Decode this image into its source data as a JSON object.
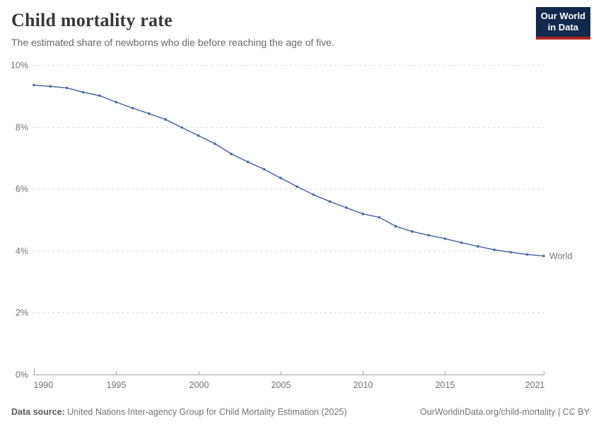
{
  "header": {
    "title": "Child mortality rate",
    "subtitle": "The estimated share of newborns who die before reaching the age of five.",
    "logo": {
      "line1": "Our World",
      "line2": "in Data",
      "bg_color": "#10294c",
      "accent_color": "#b3261e",
      "text_color": "#ffffff"
    }
  },
  "chart_data": {
    "type": "line",
    "title": "Child mortality rate",
    "xlabel": "",
    "ylabel": "",
    "ylim": [
      0,
      10
    ],
    "xlim": [
      1990,
      2021
    ],
    "yticks": [
      0,
      2,
      4,
      6,
      8,
      10
    ],
    "ytick_labels": [
      "0%",
      "2%",
      "4%",
      "6%",
      "8%",
      "10%"
    ],
    "xticks": [
      1990,
      1995,
      2000,
      2005,
      2010,
      2015,
      2021
    ],
    "grid": "horizontal-dashed",
    "legend_position": "end-of-line",
    "end_label": "World",
    "series": [
      {
        "name": "World",
        "color": "#4c6aa0",
        "x": [
          1990,
          1991,
          1992,
          1993,
          1994,
          1995,
          1996,
          1997,
          1998,
          1999,
          2000,
          2001,
          2002,
          2003,
          2004,
          2005,
          2006,
          2007,
          2008,
          2009,
          2010,
          2011,
          2012,
          2013,
          2014,
          2015,
          2016,
          2017,
          2018,
          2019,
          2020,
          2021
        ],
        "values": [
          9.35,
          9.31,
          9.26,
          9.12,
          9.01,
          8.8,
          8.61,
          8.43,
          8.24,
          7.98,
          7.72,
          7.46,
          7.13,
          6.87,
          6.63,
          6.35,
          6.07,
          5.81,
          5.59,
          5.39,
          5.19,
          5.08,
          4.79,
          4.62,
          4.5,
          4.39,
          4.26,
          4.14,
          4.03,
          3.95,
          3.88,
          3.83
        ]
      }
    ],
    "axis_color": "#a1a1a1",
    "gridline_color": "#dcdcdc"
  },
  "footer": {
    "source_label": "Data source:",
    "source_text": "United Nations Inter-agency Group for Child Mortality Estimation (2025)",
    "attribution": "OurWorldinData.org/child-mortality | CC BY"
  }
}
